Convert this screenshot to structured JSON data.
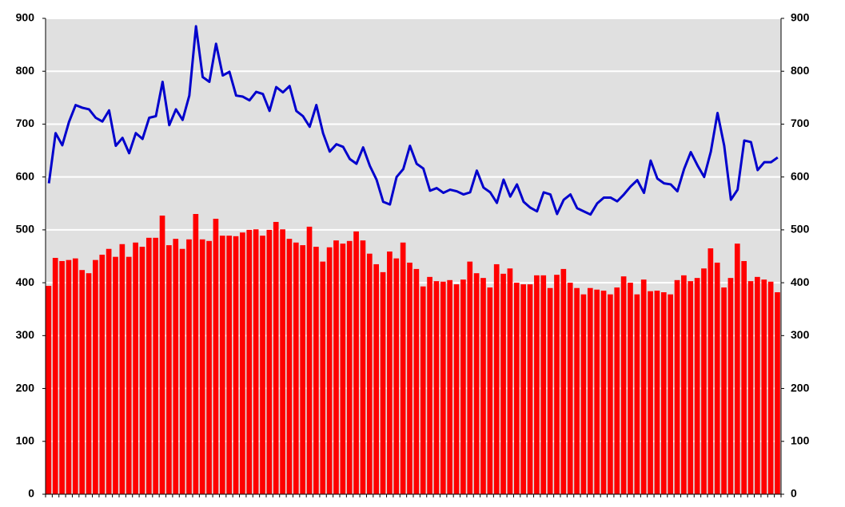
{
  "chart_data": {
    "type": "bar-line",
    "categories": [
      null,
      null,
      null,
      null,
      null,
      null,
      null,
      null,
      null,
      null,
      null,
      null,
      null,
      null,
      null,
      null,
      null,
      null,
      null,
      null,
      null,
      null,
      null,
      null,
      null,
      null,
      null,
      null,
      null,
      null,
      null,
      null,
      null,
      null,
      null,
      null,
      null,
      null,
      null,
      null,
      null,
      null,
      null,
      null,
      null,
      null,
      null,
      null,
      null,
      null,
      null,
      null,
      null,
      null,
      null,
      null,
      null,
      null,
      null,
      null,
      null,
      null,
      null,
      null,
      null,
      null,
      null,
      null,
      null,
      null,
      null,
      null,
      null,
      null,
      null,
      null,
      null,
      null,
      null,
      null,
      null,
      null,
      null,
      null,
      null,
      null,
      null,
      null,
      null,
      null,
      null,
      null,
      null,
      null,
      null,
      null,
      null,
      null,
      null,
      null,
      null,
      null,
      null,
      null,
      null,
      null,
      null,
      null,
      null,
      null
    ],
    "series": [
      {
        "type": "bar",
        "color": "#ff0000",
        "values": [
          394,
          447,
          441,
          443,
          446,
          424,
          418,
          443,
          453,
          464,
          449,
          473,
          449,
          476,
          468,
          485,
          485,
          527,
          471,
          483,
          464,
          482,
          530,
          482,
          479,
          521,
          489,
          489,
          488,
          495,
          500,
          501,
          489,
          500,
          515,
          501,
          483,
          476,
          471,
          506,
          468,
          440,
          467,
          480,
          474,
          479,
          497,
          480,
          455,
          435,
          420,
          459,
          446,
          476,
          438,
          426,
          393,
          411,
          403,
          402,
          405,
          397,
          406,
          440,
          418,
          409,
          391,
          435,
          417,
          427,
          400,
          397,
          397,
          414,
          414,
          390,
          415,
          426,
          400,
          390,
          378,
          390,
          387,
          385,
          378,
          391,
          412,
          400,
          378,
          406,
          384,
          385,
          382,
          378,
          405,
          414,
          403,
          409,
          427,
          465,
          438,
          391,
          409,
          474,
          441,
          403,
          411,
          406,
          402,
          382
        ]
      },
      {
        "type": "line",
        "color": "#0000cc",
        "axis": "y2",
        "values": [
          588,
          683,
          660,
          704,
          736,
          731,
          728,
          712,
          705,
          726,
          659,
          674,
          645,
          683,
          672,
          712,
          715,
          780,
          698,
          728,
          708,
          754,
          885,
          789,
          780,
          852,
          792,
          799,
          754,
          752,
          745,
          761,
          757,
          725,
          770,
          760,
          772,
          725,
          715,
          695,
          736,
          683,
          648,
          662,
          657,
          634,
          625,
          656,
          621,
          595,
          553,
          548,
          600,
          615,
          659,
          625,
          616,
          574,
          579,
          570,
          576,
          573,
          567,
          571,
          612,
          580,
          571,
          551,
          595,
          563,
          586,
          553,
          542,
          535,
          571,
          567,
          530,
          557,
          567,
          541,
          535,
          529,
          550,
          561,
          561,
          554,
          567,
          582,
          594,
          570,
          631,
          597,
          588,
          586,
          573,
          615,
          647,
          622,
          600,
          648,
          721,
          659,
          557,
          576,
          669,
          666,
          613,
          628,
          628,
          637
        ]
      }
    ],
    "ylim": [
      0,
      900
    ],
    "yticks": [
      0,
      100,
      200,
      300,
      400,
      500,
      600,
      700,
      800,
      900
    ],
    "y2lim": [
      0,
      900
    ],
    "y2ticks": [
      0,
      100,
      200,
      300,
      400,
      500,
      600,
      700,
      800,
      900
    ],
    "grid": true
  }
}
